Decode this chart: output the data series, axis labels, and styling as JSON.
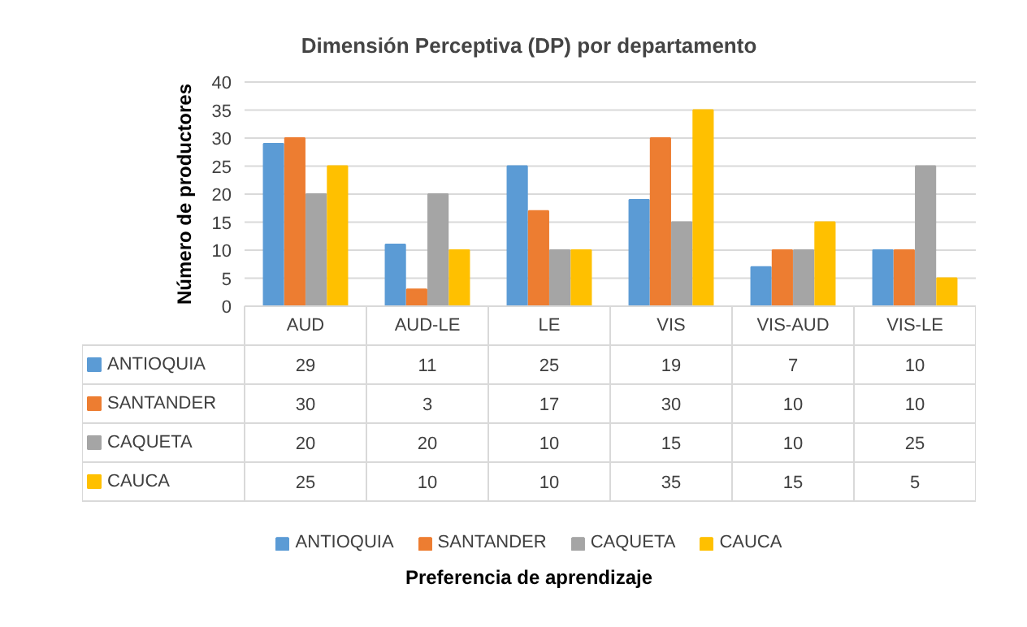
{
  "chart_data": {
    "type": "bar",
    "title": "Dimensión Perceptiva (DP) por departamento",
    "annotations": [
      "Preferencia de aprendizaje"
    ],
    "ylabel": "Número de productores",
    "categories": [
      "AUD",
      "AUD-LE",
      "LE",
      "VIS",
      "VIS-AUD",
      "VIS-LE"
    ],
    "series": [
      {
        "name": "ANTIOQUIA",
        "color": "#5b9bd5",
        "values": [
          29,
          11,
          25,
          19,
          7,
          10
        ]
      },
      {
        "name": "SANTANDER",
        "color": "#ed7d31",
        "values": [
          30,
          3,
          17,
          30,
          10,
          10
        ]
      },
      {
        "name": "CAQUETA",
        "color": "#a5a5a5",
        "values": [
          20,
          20,
          10,
          15,
          10,
          25
        ]
      },
      {
        "name": "CAUCA",
        "color": "#ffc000",
        "values": [
          25,
          10,
          10,
          35,
          15,
          5
        ]
      }
    ],
    "ylim": [
      0,
      40
    ],
    "yticks": [
      0,
      5,
      10,
      15,
      20,
      25,
      30,
      35,
      40
    ],
    "grid": "y",
    "legend": "bottom",
    "data_labels": true
  }
}
